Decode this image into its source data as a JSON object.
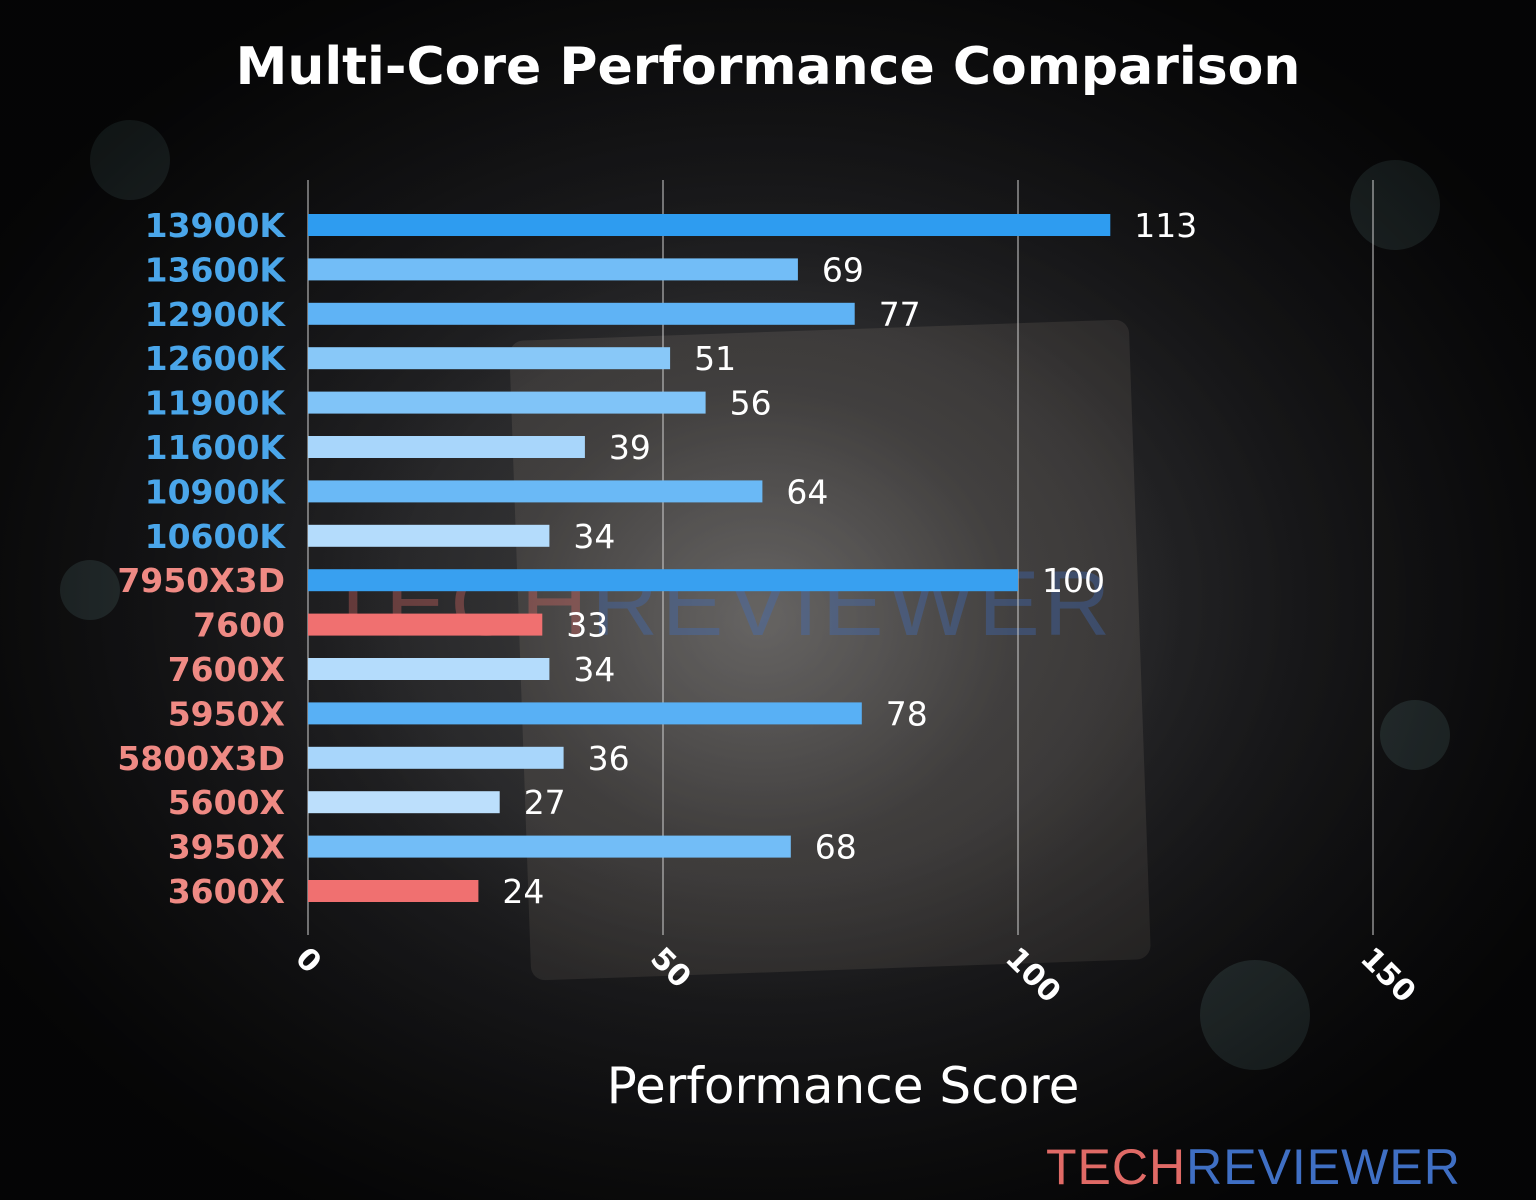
{
  "watermark": {
    "part1": "TECH",
    "part2": "REVIEWER"
  },
  "chart_data": {
    "type": "bar",
    "orientation": "horizontal",
    "title": "Multi-Core Performance Comparison",
    "xlabel": "Performance Score",
    "ylabel": "",
    "xlim": [
      0,
      150
    ],
    "xticks": [
      0,
      50,
      100,
      150
    ],
    "grid": "vertical",
    "legend": "none",
    "categories": [
      "13900K",
      "13600K",
      "12900K",
      "12600K",
      "11900K",
      "11600K",
      "10900K",
      "10600K",
      "7950X3D",
      "7600",
      "7600X",
      "5950X",
      "5800X3D",
      "5600X",
      "3950X",
      "3600X"
    ],
    "values": [
      113,
      69,
      77,
      51,
      56,
      39,
      64,
      34,
      100,
      33,
      34,
      78,
      36,
      27,
      68,
      24
    ],
    "label_colors": {
      "intel": "#4aa6ea",
      "amd": "#ef8a84",
      "groups": [
        "intel",
        "intel",
        "intel",
        "intel",
        "intel",
        "intel",
        "intel",
        "intel",
        "amd",
        "amd",
        "amd",
        "amd",
        "amd",
        "amd",
        "amd",
        "amd"
      ]
    },
    "bar_colors": [
      "#2e9cf0",
      "#72bdf7",
      "#5fb3f5",
      "#88c8f8",
      "#80c4f8",
      "#a8d6fb",
      "#6ab9f6",
      "#b4dcfc",
      "#38a0f0",
      "#f07070",
      "#b4dcfc",
      "#58b0f5",
      "#a8d6fb",
      "#bcdffc",
      "#72bdf7",
      "#f07070"
    ]
  }
}
